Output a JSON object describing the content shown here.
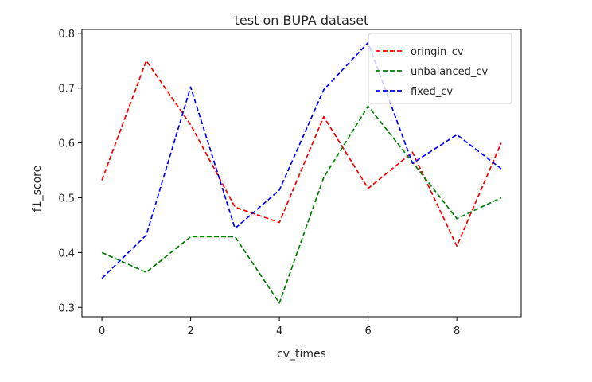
{
  "chart_data": {
    "type": "line",
    "title": "test on BUPA dataset",
    "xlabel": "cv_times",
    "ylabel": "f1_score",
    "x": [
      0,
      1,
      2,
      3,
      4,
      5,
      6,
      7,
      8,
      9
    ],
    "xlim": [
      -0.45,
      9.45
    ],
    "ylim": [
      0.283,
      0.807
    ],
    "xticks": [
      0,
      2,
      4,
      6,
      8
    ],
    "xtick_labels": [
      "0",
      "2",
      "4",
      "6",
      "8"
    ],
    "yticks": [
      0.3,
      0.4,
      0.5,
      0.6,
      0.7,
      0.8
    ],
    "ytick_labels": [
      "0.3",
      "0.4",
      "0.5",
      "0.6",
      "0.7",
      "0.8"
    ],
    "grid": false,
    "legend_position": "top-right",
    "series": [
      {
        "name": "oringin_cv",
        "color": "#ff0000",
        "style": "dashed",
        "values": [
          0.532,
          0.75,
          0.633,
          0.483,
          0.455,
          0.648,
          0.517,
          0.583,
          0.412,
          0.6
        ]
      },
      {
        "name": "unbalanced_cv",
        "color": "#008000",
        "style": "dashed",
        "values": [
          0.4,
          0.364,
          0.429,
          0.429,
          0.308,
          0.537,
          0.667,
          0.565,
          0.462,
          0.5
        ]
      },
      {
        "name": "fixed_cv",
        "color": "#0000ff",
        "style": "dashed",
        "values": [
          0.353,
          0.432,
          0.702,
          0.444,
          0.514,
          0.697,
          0.783,
          0.563,
          0.615,
          0.553
        ]
      }
    ]
  }
}
